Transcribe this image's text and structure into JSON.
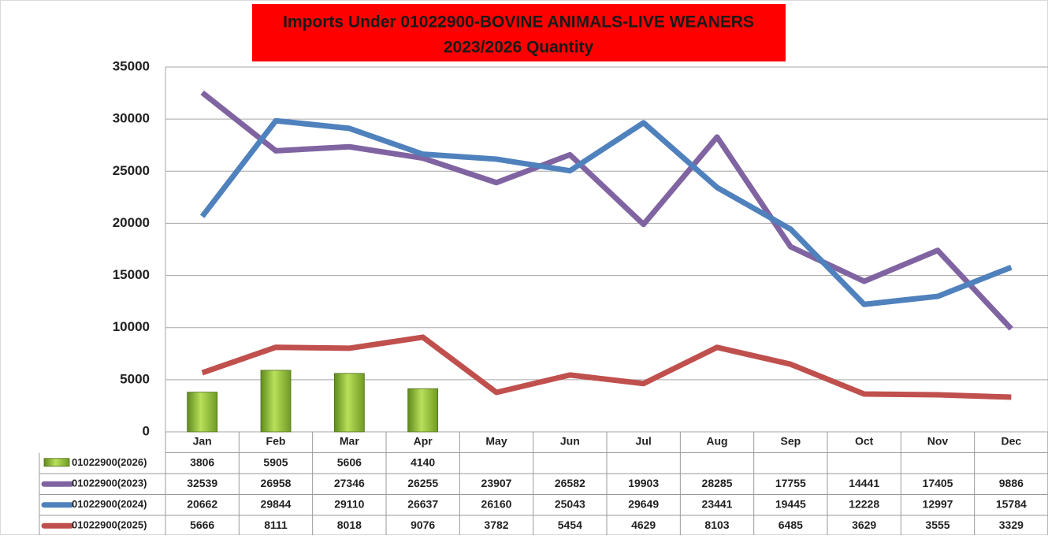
{
  "chart_data": {
    "type": "bar-line",
    "title": [
      "Imports Under  01022900-BOVINE ANIMALS-LIVE WEANERS",
      "2023/2026  Quantity"
    ],
    "categories": [
      "Jan",
      "Feb",
      "Mar",
      "Apr",
      "May",
      "Jun",
      "Jul",
      "Aug",
      "Sep",
      "Oct",
      "Nov",
      "Dec"
    ],
    "series": [
      {
        "name": "01022900(2026)",
        "type": "bar",
        "color": "#8fbf3a",
        "values": [
          3806,
          5905,
          5606,
          4140,
          null,
          null,
          null,
          null,
          null,
          null,
          null,
          null
        ]
      },
      {
        "name": "01022900(2023)",
        "type": "line",
        "color": "#8064a2",
        "values": [
          32539,
          26958,
          27346,
          26255,
          23907,
          26582,
          19903,
          28285,
          17755,
          14441,
          17405,
          9886
        ]
      },
      {
        "name": "01022900(2024)",
        "type": "line",
        "color": "#4f81bd",
        "values": [
          20662,
          29844,
          29110,
          26637,
          26160,
          25043,
          29649,
          23441,
          19445,
          12228,
          12997,
          15784
        ]
      },
      {
        "name": "01022900(2025)",
        "type": "line",
        "color": "#c0504d",
        "values": [
          5666,
          8111,
          8018,
          9076,
          3782,
          5454,
          4629,
          8103,
          6485,
          3629,
          3555,
          3329
        ]
      }
    ],
    "ylim": [
      0,
      35000
    ],
    "yticks": [
      0,
      5000,
      10000,
      15000,
      20000,
      25000,
      30000,
      35000
    ],
    "grid": true
  }
}
